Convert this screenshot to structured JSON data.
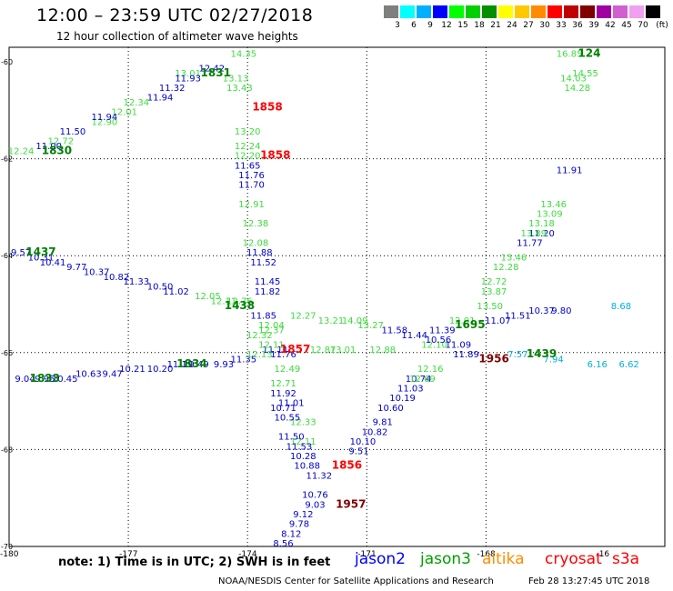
{
  "header": {
    "title": "12:00 – 23:59 UTC 02/27/2018",
    "subtitle": "12 hour collection of altimeter wave heights"
  },
  "legend": {
    "unit": "(ft)",
    "bins": [
      {
        "label": "3",
        "color": "#7f7f7f"
      },
      {
        "label": "6",
        "color": "#00ffff"
      },
      {
        "label": "9",
        "color": "#00b0ff"
      },
      {
        "label": "12",
        "color": "#0000ff"
      },
      {
        "label": "15",
        "color": "#00ff00"
      },
      {
        "label": "18",
        "color": "#00d000"
      },
      {
        "label": "21",
        "color": "#009000"
      },
      {
        "label": "24",
        "color": "#ffff00"
      },
      {
        "label": "27",
        "color": "#ffc800"
      },
      {
        "label": "30",
        "color": "#ff8c00"
      },
      {
        "label": "33",
        "color": "#ff0000"
      },
      {
        "label": "36",
        "color": "#c00000"
      },
      {
        "label": "39",
        "color": "#800000"
      },
      {
        "label": "42",
        "color": "#a000a0"
      },
      {
        "label": "45",
        "color": "#d060d0"
      },
      {
        "label": "70",
        "color": "#f0a0f0"
      },
      {
        "label": "",
        "color": "#000000"
      }
    ]
  },
  "map": {
    "lon_ticks": [
      "-180",
      "-177",
      "-174",
      "-171",
      "-168",
      "-16"
    ],
    "lat_ticks": [
      "-60",
      "-62",
      "-64",
      "-66",
      "-68",
      "-70"
    ],
    "tracks": [
      {
        "name": "t1",
        "color": "#3cdc3c",
        "points": [
          {
            "v": "14.35",
            "lon": -174.1,
            "lat": -59.9
          },
          {
            "v": "13.13",
            "lon": -174.3,
            "lat": -60.4
          },
          {
            "v": "13.43",
            "lon": -174.2,
            "lat": -60.6
          },
          {
            "v": "13.20",
            "lon": -174.0,
            "lat": -61.5
          },
          {
            "v": "12.24",
            "lon": -174.0,
            "lat": -61.8
          },
          {
            "v": "12.20",
            "lon": -174.0,
            "lat": -62.0
          },
          {
            "v": "12.38",
            "lon": -173.8,
            "lat": -63.4
          },
          {
            "v": "12.08",
            "lon": -173.8,
            "lat": -63.8
          },
          {
            "v": "12.91",
            "lon": -173.9,
            "lat": -63.0
          },
          {
            "v": "12.37",
            "lon": -173.4,
            "lat": -65.6
          },
          {
            "v": "12.32",
            "lon": -173.7,
            "lat": -65.7
          },
          {
            "v": "12.49",
            "lon": -173.0,
            "lat": -66.4
          },
          {
            "v": "12.71",
            "lon": -173.1,
            "lat": -66.7
          },
          {
            "v": "12.33",
            "lon": -172.6,
            "lat": -67.5
          },
          {
            "v": "12.11",
            "lon": -172.6,
            "lat": -67.9
          }
        ]
      },
      {
        "name": "t2",
        "color": "#0000c8",
        "points": [
          {
            "v": "11.65",
            "lon": -174.0,
            "lat": -62.2
          },
          {
            "v": "11.76",
            "lon": -173.9,
            "lat": -62.4
          },
          {
            "v": "11.70",
            "lon": -173.9,
            "lat": -62.6
          },
          {
            "v": "11.88",
            "lon": -173.7,
            "lat": -64.0
          },
          {
            "v": "11.52",
            "lon": -173.6,
            "lat": -64.2
          },
          {
            "v": "11.45",
            "lon": -173.5,
            "lat": -64.6
          },
          {
            "v": "11.82",
            "lon": -173.5,
            "lat": -64.8
          },
          {
            "v": "11.92",
            "lon": -173.1,
            "lat": -66.9
          },
          {
            "v": "10.71",
            "lon": -173.1,
            "lat": -67.2
          },
          {
            "v": "10.55",
            "lon": -173.0,
            "lat": -67.4
          },
          {
            "v": "11.50",
            "lon": -172.9,
            "lat": -67.8
          },
          {
            "v": "11.01",
            "lon": -172.9,
            "lat": -67.1
          },
          {
            "v": "11.53",
            "lon": -172.7,
            "lat": -68.0
          },
          {
            "v": "10.28",
            "lon": -172.6,
            "lat": -68.2
          },
          {
            "v": "10.88",
            "lon": -172.5,
            "lat": -68.4
          },
          {
            "v": "11.32",
            "lon": -172.2,
            "lat": -68.6
          },
          {
            "v": "10.76",
            "lon": -172.3,
            "lat": -69.0
          },
          {
            "v": "9.03",
            "lon": -172.3,
            "lat": -69.2
          },
          {
            "v": "9.12",
            "lon": -172.6,
            "lat": -69.4
          },
          {
            "v": "9.78",
            "lon": -172.7,
            "lat": -69.6
          },
          {
            "v": "8.12",
            "lon": -172.9,
            "lat": -69.8
          },
          {
            "v": "8.56",
            "lon": -173.1,
            "lat": -70.0
          }
        ]
      },
      {
        "name": "t3",
        "color": "#0000c8",
        "points": [
          {
            "v": "9.51",
            "lon": -171.2,
            "lat": -68.1
          },
          {
            "v": "10.10",
            "lon": -171.1,
            "lat": -67.9
          },
          {
            "v": "10.82",
            "lon": -170.8,
            "lat": -67.7
          },
          {
            "v": "9.81",
            "lon": -170.6,
            "lat": -67.5
          },
          {
            "v": "10.60",
            "lon": -170.4,
            "lat": -67.2
          },
          {
            "v": "10.19",
            "lon": -170.1,
            "lat": -67.0
          },
          {
            "v": "11.03",
            "lon": -169.9,
            "lat": -66.8
          },
          {
            "v": "10.74",
            "lon": -169.7,
            "lat": -66.6
          },
          {
            "v": "11.89",
            "lon": -168.5,
            "lat": -66.1
          },
          {
            "v": "11.09",
            "lon": -168.7,
            "lat": -65.9
          },
          {
            "v": "11.07",
            "lon": -167.7,
            "lat": -65.4
          },
          {
            "v": "11.51",
            "lon": -167.2,
            "lat": -65.3
          },
          {
            "v": "11.77",
            "lon": -166.9,
            "lat": -63.8
          },
          {
            "v": "11.20",
            "lon": -166.6,
            "lat": -63.6
          },
          {
            "v": "11.91",
            "lon": -165.9,
            "lat": -62.3
          }
        ]
      },
      {
        "name": "t4",
        "color": "#3cdc3c",
        "points": [
          {
            "v": "12.16",
            "lon": -169.4,
            "lat": -66.4
          },
          {
            "v": "12.69",
            "lon": -169.6,
            "lat": -66.6
          },
          {
            "v": "12.28",
            "lon": -167.5,
            "lat": -64.3
          },
          {
            "v": "13.46",
            "lon": -167.3,
            "lat": -64.1
          },
          {
            "v": "12.72",
            "lon": -167.8,
            "lat": -64.6
          },
          {
            "v": "13.87",
            "lon": -167.8,
            "lat": -64.8
          },
          {
            "v": "13.50",
            "lon": -167.9,
            "lat": -65.1
          },
          {
            "v": "13.89",
            "lon": -166.8,
            "lat": -63.6
          },
          {
            "v": "13.18",
            "lon": -166.6,
            "lat": -63.4
          },
          {
            "v": "13.09",
            "lon": -166.4,
            "lat": -63.2
          },
          {
            "v": "13.46",
            "lon": -166.3,
            "lat": -63.0
          },
          {
            "v": "14.28",
            "lon": -165.7,
            "lat": -60.6
          },
          {
            "v": "14.03",
            "lon": -165.8,
            "lat": -60.4
          }
        ]
      },
      {
        "name": "t5",
        "color": "#3cdc3c",
        "points": [
          {
            "v": "12.24",
            "lon": -179.7,
            "lat": -61.9
          },
          {
            "v": "12.72",
            "lon": -178.7,
            "lat": -61.7
          },
          {
            "v": "12.90",
            "lon": -177.6,
            "lat": -61.3
          },
          {
            "v": "12.01",
            "lon": -177.1,
            "lat": -61.1
          },
          {
            "v": "12.34",
            "lon": -176.8,
            "lat": -60.9
          },
          {
            "v": "13.01",
            "lon": -175.5,
            "lat": -60.3
          }
        ]
      },
      {
        "name": "t6",
        "color": "#0000c8",
        "points": [
          {
            "v": "11.00",
            "lon": -179.0,
            "lat": -61.8
          },
          {
            "v": "11.50",
            "lon": -178.4,
            "lat": -61.5
          },
          {
            "v": "11.94",
            "lon": -177.6,
            "lat": -61.2
          },
          {
            "v": "11.94",
            "lon": -176.2,
            "lat": -60.8
          },
          {
            "v": "11.32",
            "lon": -175.9,
            "lat": -60.6
          },
          {
            "v": "11.93",
            "lon": -175.5,
            "lat": -60.4
          },
          {
            "v": "12.42",
            "lon": -174.9,
            "lat": -60.2
          }
        ]
      },
      {
        "name": "t7",
        "color": "#0000c8",
        "points": [
          {
            "v": "9.57",
            "lon": -179.7,
            "lat": -64.0
          },
          {
            "v": "10.31",
            "lon": -179.2,
            "lat": -64.1
          },
          {
            "v": "10.41",
            "lon": -178.9,
            "lat": -64.2
          },
          {
            "v": "9.77",
            "lon": -178.3,
            "lat": -64.3
          },
          {
            "v": "10.37",
            "lon": -177.8,
            "lat": -64.4
          },
          {
            "v": "10.82",
            "lon": -177.3,
            "lat": -64.5
          },
          {
            "v": "11.33",
            "lon": -176.8,
            "lat": -64.6
          },
          {
            "v": "10.50",
            "lon": -176.2,
            "lat": -64.7
          },
          {
            "v": "11.02",
            "lon": -175.8,
            "lat": -64.8
          }
        ]
      },
      {
        "name": "t8",
        "color": "#3cdc3c",
        "points": [
          {
            "v": "12.05",
            "lon": -175.0,
            "lat": -64.9
          },
          {
            "v": "12.11",
            "lon": -174.6,
            "lat": -65.0
          },
          {
            "v": "12.76",
            "lon": -174.2,
            "lat": -65.0
          },
          {
            "v": "12.27",
            "lon": -172.6,
            "lat": -65.3
          },
          {
            "v": "13.21",
            "lon": -171.9,
            "lat": -65.4
          },
          {
            "v": "14.09",
            "lon": -171.3,
            "lat": -65.4
          },
          {
            "v": "13.27",
            "lon": -170.9,
            "lat": -65.5
          },
          {
            "v": "12.87",
            "lon": -172.1,
            "lat": -66.0
          },
          {
            "v": "13.01",
            "lon": -171.6,
            "lat": -66.0
          },
          {
            "v": "12.88",
            "lon": -170.6,
            "lat": -66.0
          },
          {
            "v": "12.01",
            "lon": -168.6,
            "lat": -65.4
          },
          {
            "v": "12.10",
            "lon": -169.3,
            "lat": -65.9
          }
        ]
      },
      {
        "name": "t9",
        "color": "#0000c8",
        "points": [
          {
            "v": "11.58",
            "lon": -170.3,
            "lat": -65.6
          },
          {
            "v": "11.44",
            "lon": -169.8,
            "lat": -65.7
          },
          {
            "v": "11.39",
            "lon": -169.1,
            "lat": -65.6
          },
          {
            "v": "10.56",
            "lon": -169.2,
            "lat": -65.8
          },
          {
            "v": "11.11",
            "lon": -173.3,
            "lat": -66.0
          },
          {
            "v": "11.76",
            "lon": -173.1,
            "lat": -66.1
          },
          {
            "v": "11.85",
            "lon": -173.6,
            "lat": -65.3
          },
          {
            "v": "10.37",
            "lon": -166.6,
            "lat": -65.2
          },
          {
            "v": "9.80",
            "lon": -166.1,
            "lat": -65.2
          }
        ]
      },
      {
        "name": "t10",
        "color": "#0000c8",
        "points": [
          {
            "v": "9.04",
            "lon": -179.6,
            "lat": -66.6
          },
          {
            "v": "9.95",
            "lon": -179.1,
            "lat": -66.6
          },
          {
            "v": "10.45",
            "lon": -178.6,
            "lat": -66.6
          },
          {
            "v": "10.63",
            "lon": -178.0,
            "lat": -66.5
          },
          {
            "v": "9.47",
            "lon": -177.4,
            "lat": -66.5
          },
          {
            "v": "10.21",
            "lon": -176.9,
            "lat": -66.4
          },
          {
            "v": "10.20",
            "lon": -176.2,
            "lat": -66.4
          },
          {
            "v": "11.19",
            "lon": -175.7,
            "lat": -66.3
          },
          {
            "v": "10.49",
            "lon": -175.3,
            "lat": -66.3
          },
          {
            "v": "9.93",
            "lon": -174.6,
            "lat": -66.3
          },
          {
            "v": "11.35",
            "lon": -174.1,
            "lat": -66.2
          }
        ]
      },
      {
        "name": "t11",
        "color": "#3cdc3c",
        "points": [
          {
            "v": "12.13",
            "lon": -173.7,
            "lat": -66.1
          },
          {
            "v": "12.04",
            "lon": -173.4,
            "lat": -65.5
          },
          {
            "v": "12.11",
            "lon": -173.4,
            "lat": -65.9
          }
        ]
      },
      {
        "name": "t12",
        "color": "#00b0dc",
        "points": [
          {
            "v": "8.68",
            "lon": -164.6,
            "lat": -65.1
          },
          {
            "v": "6.16",
            "lon": -165.2,
            "lat": -66.3
          },
          {
            "v": "6.62",
            "lon": -164.4,
            "lat": -66.3
          },
          {
            "v": "7.57",
            "lon": -167.2,
            "lat": -66.1
          },
          {
            "v": "7.94",
            "lon": -166.3,
            "lat": -66.2
          }
        ]
      },
      {
        "name": "t13",
        "color": "#3cdc3c",
        "points": [
          {
            "v": "16.85",
            "lon": -165.9,
            "lat": -59.9
          },
          {
            "v": "14.55",
            "lon": -165.5,
            "lat": -60.3
          }
        ]
      }
    ],
    "passes": [
      {
        "label": "1830",
        "color": "#008000",
        "lon": -178.8,
        "lat": -61.9
      },
      {
        "label": "1831",
        "color": "#008000",
        "lon": -174.8,
        "lat": -60.3
      },
      {
        "label": "1858",
        "color": "#ff0000",
        "lon": -173.5,
        "lat": -61.0
      },
      {
        "label": "1858",
        "color": "#ff0000",
        "lon": -173.3,
        "lat": -62.0
      },
      {
        "label": "1437",
        "color": "#008000",
        "lon": -179.2,
        "lat": -64.0
      },
      {
        "label": "1438",
        "color": "#008000",
        "lon": -174.2,
        "lat": -65.1
      },
      {
        "label": "1857",
        "color": "#ff0000",
        "lon": -172.8,
        "lat": -66.0
      },
      {
        "label": "1833",
        "color": "#008000",
        "lon": -179.1,
        "lat": -66.6
      },
      {
        "label": "1834",
        "color": "#008000",
        "lon": -175.4,
        "lat": -66.3
      },
      {
        "label": "1856",
        "color": "#ff0000",
        "lon": -171.5,
        "lat": -68.4
      },
      {
        "label": "1957",
        "color": "#800000",
        "lon": -171.4,
        "lat": -69.2
      },
      {
        "label": "1956",
        "color": "#800000",
        "lon": -167.8,
        "lat": -66.2
      },
      {
        "label": "1695",
        "color": "#008000",
        "lon": -168.4,
        "lat": -65.5
      },
      {
        "label": "1439",
        "color": "#008000",
        "lon": -166.6,
        "lat": -66.1
      },
      {
        "label": "124",
        "color": "#008000",
        "lon": -165.4,
        "lat": -59.9
      }
    ]
  },
  "note": "note: 1) Time is in UTC; 2) SWH is in feet",
  "satellites": [
    {
      "name": "jason2",
      "color": "#0000ff"
    },
    {
      "name": "jason3",
      "color": "#00a000"
    },
    {
      "name": "altika",
      "color": "#ff8c00"
    },
    {
      "name": "cryosat",
      "color": "#ff0000"
    },
    {
      "name": "s3a",
      "color": "#ff0000"
    }
  ],
  "footer": {
    "credit": "NOAA/NESDIS Center for Satellite Applications and Research",
    "date": "Feb 28 13:27:45 UTC 2018"
  }
}
